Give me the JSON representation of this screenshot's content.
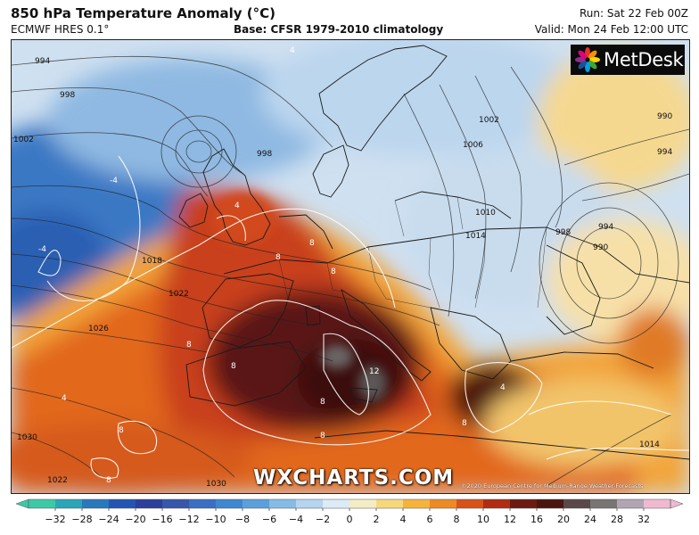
{
  "header": {
    "title": "850 hPa Temperature Anomaly (°C)",
    "model": "ECMWF HRES 0.1°",
    "base": "Base: CFSR 1979-2010 climatology",
    "run": "Run: Sat 22 Feb 00Z",
    "valid": "Valid: Mon 24 Feb 12:00 UTC"
  },
  "logo": {
    "text": "MetDesk",
    "icon": "flower-logo-icon"
  },
  "watermark": "WXCHARTS.COM",
  "copyright": "©2020 European Centre for Medium-Range Weather Forecasts",
  "isobar_labels": [
    "994",
    "998",
    "1002",
    "1018",
    "1022",
    "1026",
    "1030",
    "1022",
    "1030",
    "998",
    "1002",
    "1006",
    "1010",
    "1014",
    "998",
    "994",
    "990",
    "990",
    "994",
    "1014"
  ],
  "contour_labels": [
    "4",
    "-4",
    "-4",
    "4",
    "8",
    "8",
    "8",
    "8",
    "8",
    "12",
    "8",
    "8",
    "4",
    "8",
    "8",
    "4",
    "8"
  ],
  "colorbar": {
    "ticks": [
      "−32",
      "−28",
      "−24",
      "−20",
      "−16",
      "−12",
      "−10",
      "−8",
      "−6",
      "−4",
      "−2",
      "0",
      "2",
      "4",
      "6",
      "8",
      "10",
      "12",
      "16",
      "20",
      "24",
      "28",
      "32"
    ],
    "colors": [
      "#3cc9a5",
      "#2aa6b8",
      "#2878be",
      "#2455b4",
      "#2c3f9c",
      "#3757ad",
      "#3a6fc4",
      "#3f87d2",
      "#5aa0dc",
      "#86bbe6",
      "#b4d4ef",
      "#dcebf5",
      "#f3ecc4",
      "#f7d77c",
      "#f5b33c",
      "#ee8a23",
      "#d9521a",
      "#b12c13",
      "#6d1b10",
      "#4a1610",
      "#5a4848",
      "#7a7575",
      "#b0a5b0",
      "#f0b9d0"
    ],
    "arrow_left_color": "#3cc9a5",
    "arrow_right_color": "#f0b9d0"
  }
}
